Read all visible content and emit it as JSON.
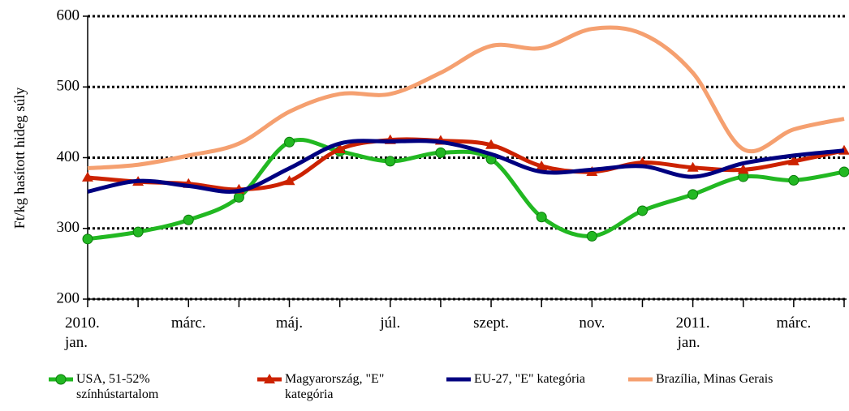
{
  "chart_data": {
    "type": "line",
    "y_label": "Ft/kg hasított hideg súly",
    "categories": [
      "2010.\njan.",
      null,
      "márc.",
      null,
      "máj.",
      null,
      "júl.",
      null,
      "szept.",
      null,
      "nov.",
      null,
      "2011.\njan.",
      null,
      "márc.",
      null
    ],
    "series": [
      {
        "name": "USA, 51-52% színhústartalom",
        "color": "#22b822",
        "marker": "circle",
        "values": [
          285,
          295,
          312,
          344,
          422,
          409,
          395,
          407,
          398,
          316,
          289,
          325,
          348,
          373,
          368,
          380
        ]
      },
      {
        "name": "Magyarország, \"E\" kategória",
        "color": "#cc2200",
        "marker": "triangle",
        "values": [
          372,
          366,
          363,
          355,
          367,
          412,
          425,
          424,
          418,
          388,
          380,
          393,
          386,
          383,
          395,
          410
        ]
      },
      {
        "name": "EU-27, \"E\" kategória",
        "color": "#000080",
        "values": [
          352,
          367,
          360,
          353,
          385,
          420,
          423,
          422,
          405,
          380,
          383,
          388,
          373,
          392,
          403,
          410
        ]
      },
      {
        "name": "Brazília, Minas Gerais",
        "color": "#f5a070",
        "values": [
          385,
          390,
          403,
          420,
          465,
          490,
          490,
          520,
          558,
          555,
          582,
          575,
          520,
          412,
          440,
          455
        ]
      }
    ],
    "ylim": [
      200,
      600
    ],
    "yticks": [
      200,
      300,
      400,
      500,
      600
    ],
    "grid": true
  }
}
